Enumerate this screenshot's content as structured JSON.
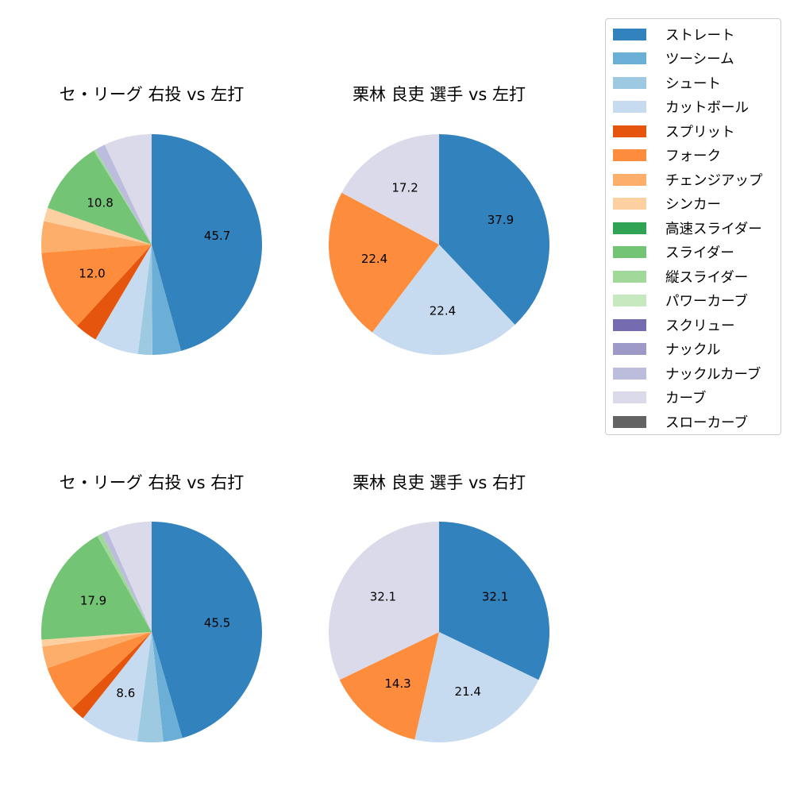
{
  "colors": {
    "ストレート": "#3182bd",
    "ツーシーム": "#6baed6",
    "シュート": "#9ecae1",
    "カットボール": "#c6dbef",
    "スプリット": "#e6550d",
    "フォーク": "#fd8d3c",
    "チェンジアップ": "#fdae6b",
    "シンカー": "#fdd0a2",
    "高速スライダー": "#31a354",
    "スライダー": "#74c476",
    "縦スライダー": "#a1d99b",
    "パワーカーブ": "#c7e9c0",
    "スクリュー": "#756bb1",
    "ナックル": "#9e9ac8",
    "ナックルカーブ": "#bcbddc",
    "カーブ": "#dadaeb",
    "スローカーブ": "#636363"
  },
  "legend": {
    "items": [
      "ストレート",
      "ツーシーム",
      "シュート",
      "カットボール",
      "スプリット",
      "フォーク",
      "チェンジアップ",
      "シンカー",
      "高速スライダー",
      "スライダー",
      "縦スライダー",
      "パワーカーブ",
      "スクリュー",
      "ナックル",
      "ナックルカーブ",
      "カーブ",
      "スローカーブ"
    ]
  },
  "chart_data": [
    {
      "type": "pie",
      "title": "セ・リーグ 右投 vs 左打",
      "labels_shown_min": 10,
      "slices": [
        {
          "name": "ストレート",
          "value": 45.7
        },
        {
          "name": "ツーシーム",
          "value": 4.2
        },
        {
          "name": "シュート",
          "value": 2.1
        },
        {
          "name": "カットボール",
          "value": 6.5
        },
        {
          "name": "スプリット",
          "value": 3.3
        },
        {
          "name": "フォーク",
          "value": 12.0
        },
        {
          "name": "チェンジアップ",
          "value": 4.6
        },
        {
          "name": "シンカー",
          "value": 2.0
        },
        {
          "name": "スライダー",
          "value": 10.8
        },
        {
          "name": "縦スライダー",
          "value": 0.3
        },
        {
          "name": "ナックルカーブ",
          "value": 1.5
        },
        {
          "name": "カーブ",
          "value": 7.0
        }
      ]
    },
    {
      "type": "pie",
      "title": "栗林 良吏 選手 vs 左打",
      "labels_shown_min": 10,
      "slices": [
        {
          "name": "ストレート",
          "value": 37.9
        },
        {
          "name": "カットボール",
          "value": 22.4
        },
        {
          "name": "フォーク",
          "value": 22.4
        },
        {
          "name": "カーブ",
          "value": 17.2
        }
      ]
    },
    {
      "type": "pie",
      "title": "セ・リーグ 右投 vs 右打",
      "labels_shown_min": 8,
      "slices": [
        {
          "name": "ストレート",
          "value": 45.5
        },
        {
          "name": "ツーシーム",
          "value": 2.8
        },
        {
          "name": "シュート",
          "value": 3.8
        },
        {
          "name": "カットボール",
          "value": 8.6
        },
        {
          "name": "スプリット",
          "value": 2.1
        },
        {
          "name": "フォーク",
          "value": 6.9
        },
        {
          "name": "チェンジアップ",
          "value": 3.2
        },
        {
          "name": "シンカー",
          "value": 1.0
        },
        {
          "name": "スライダー",
          "value": 17.9
        },
        {
          "name": "縦スライダー",
          "value": 0.7
        },
        {
          "name": "ナックルカーブ",
          "value": 0.9
        },
        {
          "name": "カーブ",
          "value": 6.6
        }
      ]
    },
    {
      "type": "pie",
      "title": "栗林 良吏 選手 vs 右打",
      "labels_shown_min": 10,
      "slices": [
        {
          "name": "ストレート",
          "value": 32.1
        },
        {
          "name": "カットボール",
          "value": 21.4
        },
        {
          "name": "フォーク",
          "value": 14.3
        },
        {
          "name": "カーブ",
          "value": 32.1
        }
      ]
    }
  ]
}
